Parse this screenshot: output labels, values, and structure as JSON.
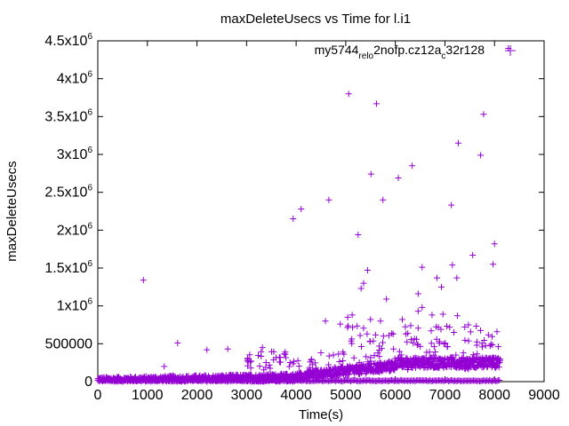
{
  "chart_data": {
    "type": "scatter",
    "title": "maxDeleteUsecs vs Time for l.i1",
    "xlabel": "Time(s)",
    "ylabel": "maxDeleteUsecs",
    "xlim": [
      0,
      9000
    ],
    "ylim": [
      0,
      4500000
    ],
    "grid": false,
    "legend_position": "top-right",
    "x_ticks": [
      0,
      1000,
      2000,
      3000,
      4000,
      5000,
      6000,
      7000,
      8000,
      9000
    ],
    "x_tick_labels": [
      "0",
      "1000",
      "2000",
      "3000",
      "4000",
      "5000",
      "6000",
      "7000",
      "8000",
      "9000"
    ],
    "y_ticks": [
      0,
      500000,
      1000000,
      1500000,
      2000000,
      2500000,
      3000000,
      3500000,
      4000000,
      4500000
    ],
    "y_tick_labels": [
      {
        "base": "0",
        "exp": ""
      },
      {
        "base": "500000",
        "exp": ""
      },
      {
        "base": "1x10",
        "exp": "6"
      },
      {
        "base": "1.5x10",
        "exp": "6"
      },
      {
        "base": "2x10",
        "exp": "6"
      },
      {
        "base": "2.5x10",
        "exp": "6"
      },
      {
        "base": "3x10",
        "exp": "6"
      },
      {
        "base": "3.5x10",
        "exp": "6"
      },
      {
        "base": "4x10",
        "exp": "6"
      },
      {
        "base": "4.5x10",
        "exp": "6"
      }
    ],
    "series": [
      {
        "name": "my5744_rel_o2nofp.cz12a_c32r128",
        "name_parts": [
          {
            "text": "my5744",
            "style": "normal"
          },
          {
            "text": "rel",
            "style": "sub"
          },
          {
            "text": "o",
            "style": "sub"
          },
          {
            "text": "2nofp.cz12a",
            "style": "normal"
          },
          {
            "text": "c",
            "style": "sub"
          },
          {
            "text": "32r128",
            "style": "normal"
          }
        ],
        "color": "#9400d3",
        "marker": "+",
        "outliers": [
          [
            8280,
            4400000
          ],
          [
            5060,
            3800000
          ],
          [
            5620,
            3670000
          ],
          [
            7780,
            3530000
          ],
          [
            7270,
            3150000
          ],
          [
            7720,
            2990000
          ],
          [
            6340,
            2850000
          ],
          [
            5510,
            2740000
          ],
          [
            6060,
            2690000
          ],
          [
            4660,
            2400000
          ],
          [
            5750,
            2400000
          ],
          [
            7130,
            2330000
          ],
          [
            4100,
            2280000
          ],
          [
            3940,
            2150000
          ],
          [
            8000,
            1820000
          ],
          [
            5250,
            1940000
          ],
          [
            7560,
            1670000
          ],
          [
            7970,
            1550000
          ],
          [
            7150,
            1540000
          ],
          [
            6540,
            1510000
          ],
          [
            5440,
            1470000
          ],
          [
            920,
            1340000
          ],
          [
            5360,
            1300000
          ],
          [
            6840,
            1370000
          ],
          [
            7240,
            1370000
          ],
          [
            5310,
            1230000
          ],
          [
            6930,
            1250000
          ],
          [
            6460,
            1160000
          ],
          [
            5820,
            1090000
          ],
          [
            6540,
            980000
          ],
          [
            6460,
            930000
          ],
          [
            5130,
            880000
          ],
          [
            5040,
            850000
          ],
          [
            6740,
            880000
          ],
          [
            6960,
            890000
          ],
          [
            7250,
            870000
          ],
          [
            4590,
            800000
          ],
          [
            5500,
            820000
          ],
          [
            5700,
            800000
          ],
          [
            6140,
            820000
          ],
          [
            4890,
            760000
          ],
          [
            6310,
            740000
          ],
          [
            7400,
            720000
          ],
          [
            6920,
            690000
          ],
          [
            7180,
            650000
          ],
          [
            6210,
            630000
          ],
          [
            5870,
            610000
          ],
          [
            5760,
            600000
          ],
          [
            5290,
            610000
          ],
          [
            1610,
            510000
          ],
          [
            2200,
            420000
          ],
          [
            2620,
            430000
          ],
          [
            1340,
            200000
          ],
          [
            3320,
            450000
          ],
          [
            3780,
            360000
          ]
        ],
        "bulk_note": "Dense band of low values: ~0-100000 from 0 to 4000 s, rising to ~100000-320000 between 4000 and 8100 s"
      }
    ]
  }
}
